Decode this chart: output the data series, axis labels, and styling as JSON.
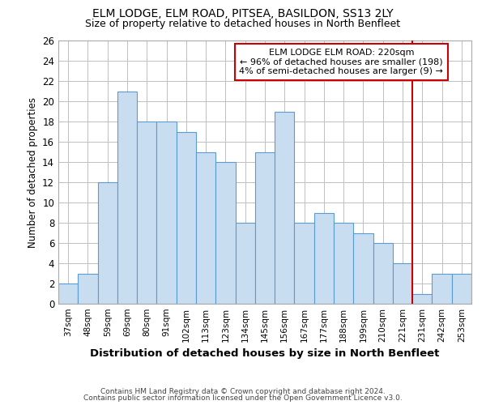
{
  "title": "ELM LODGE, ELM ROAD, PITSEA, BASILDON, SS13 2LY",
  "subtitle": "Size of property relative to detached houses in North Benfleet",
  "xlabel": "Distribution of detached houses by size in North Benfleet",
  "ylabel": "Number of detached properties",
  "bar_labels": [
    "37sqm",
    "48sqm",
    "59sqm",
    "69sqm",
    "80sqm",
    "91sqm",
    "102sqm",
    "113sqm",
    "123sqm",
    "134sqm",
    "145sqm",
    "156sqm",
    "167sqm",
    "177sqm",
    "188sqm",
    "199sqm",
    "210sqm",
    "221sqm",
    "231sqm",
    "242sqm",
    "253sqm"
  ],
  "bar_values": [
    2,
    3,
    12,
    21,
    18,
    18,
    17,
    15,
    14,
    8,
    15,
    19,
    8,
    9,
    8,
    7,
    6,
    4,
    1,
    3,
    3
  ],
  "bar_color": "#c8ddf0",
  "bar_edge_color": "#5b9bd5",
  "ylim": [
    0,
    26
  ],
  "yticks": [
    0,
    2,
    4,
    6,
    8,
    10,
    12,
    14,
    16,
    18,
    20,
    22,
    24,
    26
  ],
  "vline_x_index": 17,
  "vline_color": "#cc0000",
  "annotation_title": "ELM LODGE ELM ROAD: 220sqm",
  "annotation_line1": "← 96% of detached houses are smaller (198)",
  "annotation_line2": "4% of semi-detached houses are larger (9) →",
  "annotation_box_color": "#ffffff",
  "annotation_box_edge": "#cc0000",
  "footnote1": "Contains HM Land Registry data © Crown copyright and database right 2024.",
  "footnote2": "Contains public sector information licensed under the Open Government Licence v3.0.",
  "background_color": "#ffffff",
  "grid_color": "#c0c0c0"
}
